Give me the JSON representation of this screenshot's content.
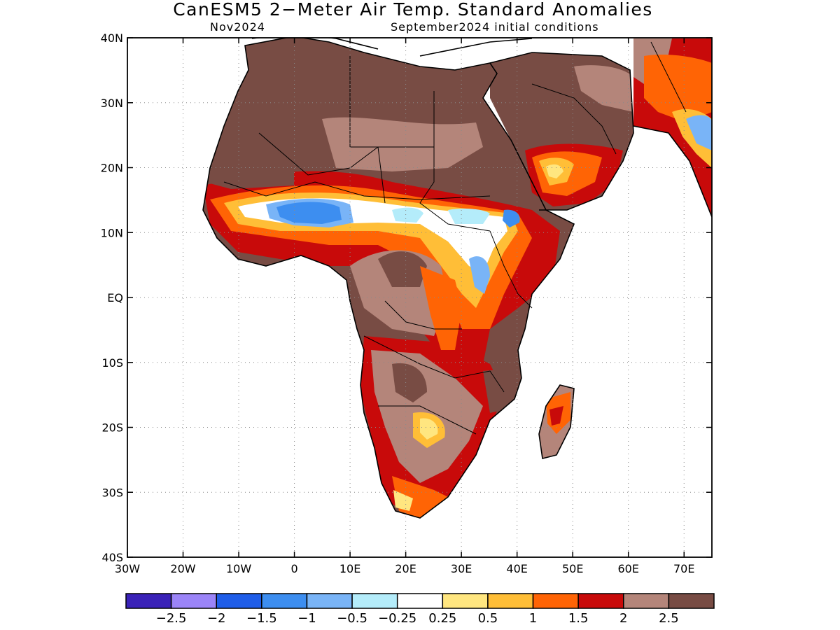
{
  "title": "CanESM5 2−Meter Air Temp. Standard Anomalies",
  "subtitle_left": "Nov2024",
  "subtitle_right": "September2024 initial conditions",
  "map": {
    "lon_range": [
      -30,
      75
    ],
    "lat_range": [
      -40,
      40
    ],
    "lat_labels": [
      "40N",
      "30N",
      "20N",
      "10N",
      "EQ",
      "10S",
      "20S",
      "30S",
      "40S"
    ],
    "lon_labels": [
      "30W",
      "20W",
      "10W",
      "0",
      "10E",
      "20E",
      "30E",
      "40E",
      "50E",
      "60E",
      "70E"
    ],
    "grid_lines": "dotted"
  },
  "colorbar": {
    "colors": [
      "#3a22b8",
      "#9b84f8",
      "#1f5de8",
      "#3d8ef0",
      "#79b4f7",
      "#b4ecfa",
      "#ffffff",
      "#ffe680",
      "#ffbe37",
      "#ff6405",
      "#c80a0a",
      "#b4857a",
      "#784c44"
    ],
    "labels": [
      "−2.5",
      "−2",
      "−1.5",
      "−1",
      "−0.5",
      "−0.25",
      "0.25",
      "0.5",
      "1",
      "1.5",
      "2",
      "2.5"
    ]
  }
}
